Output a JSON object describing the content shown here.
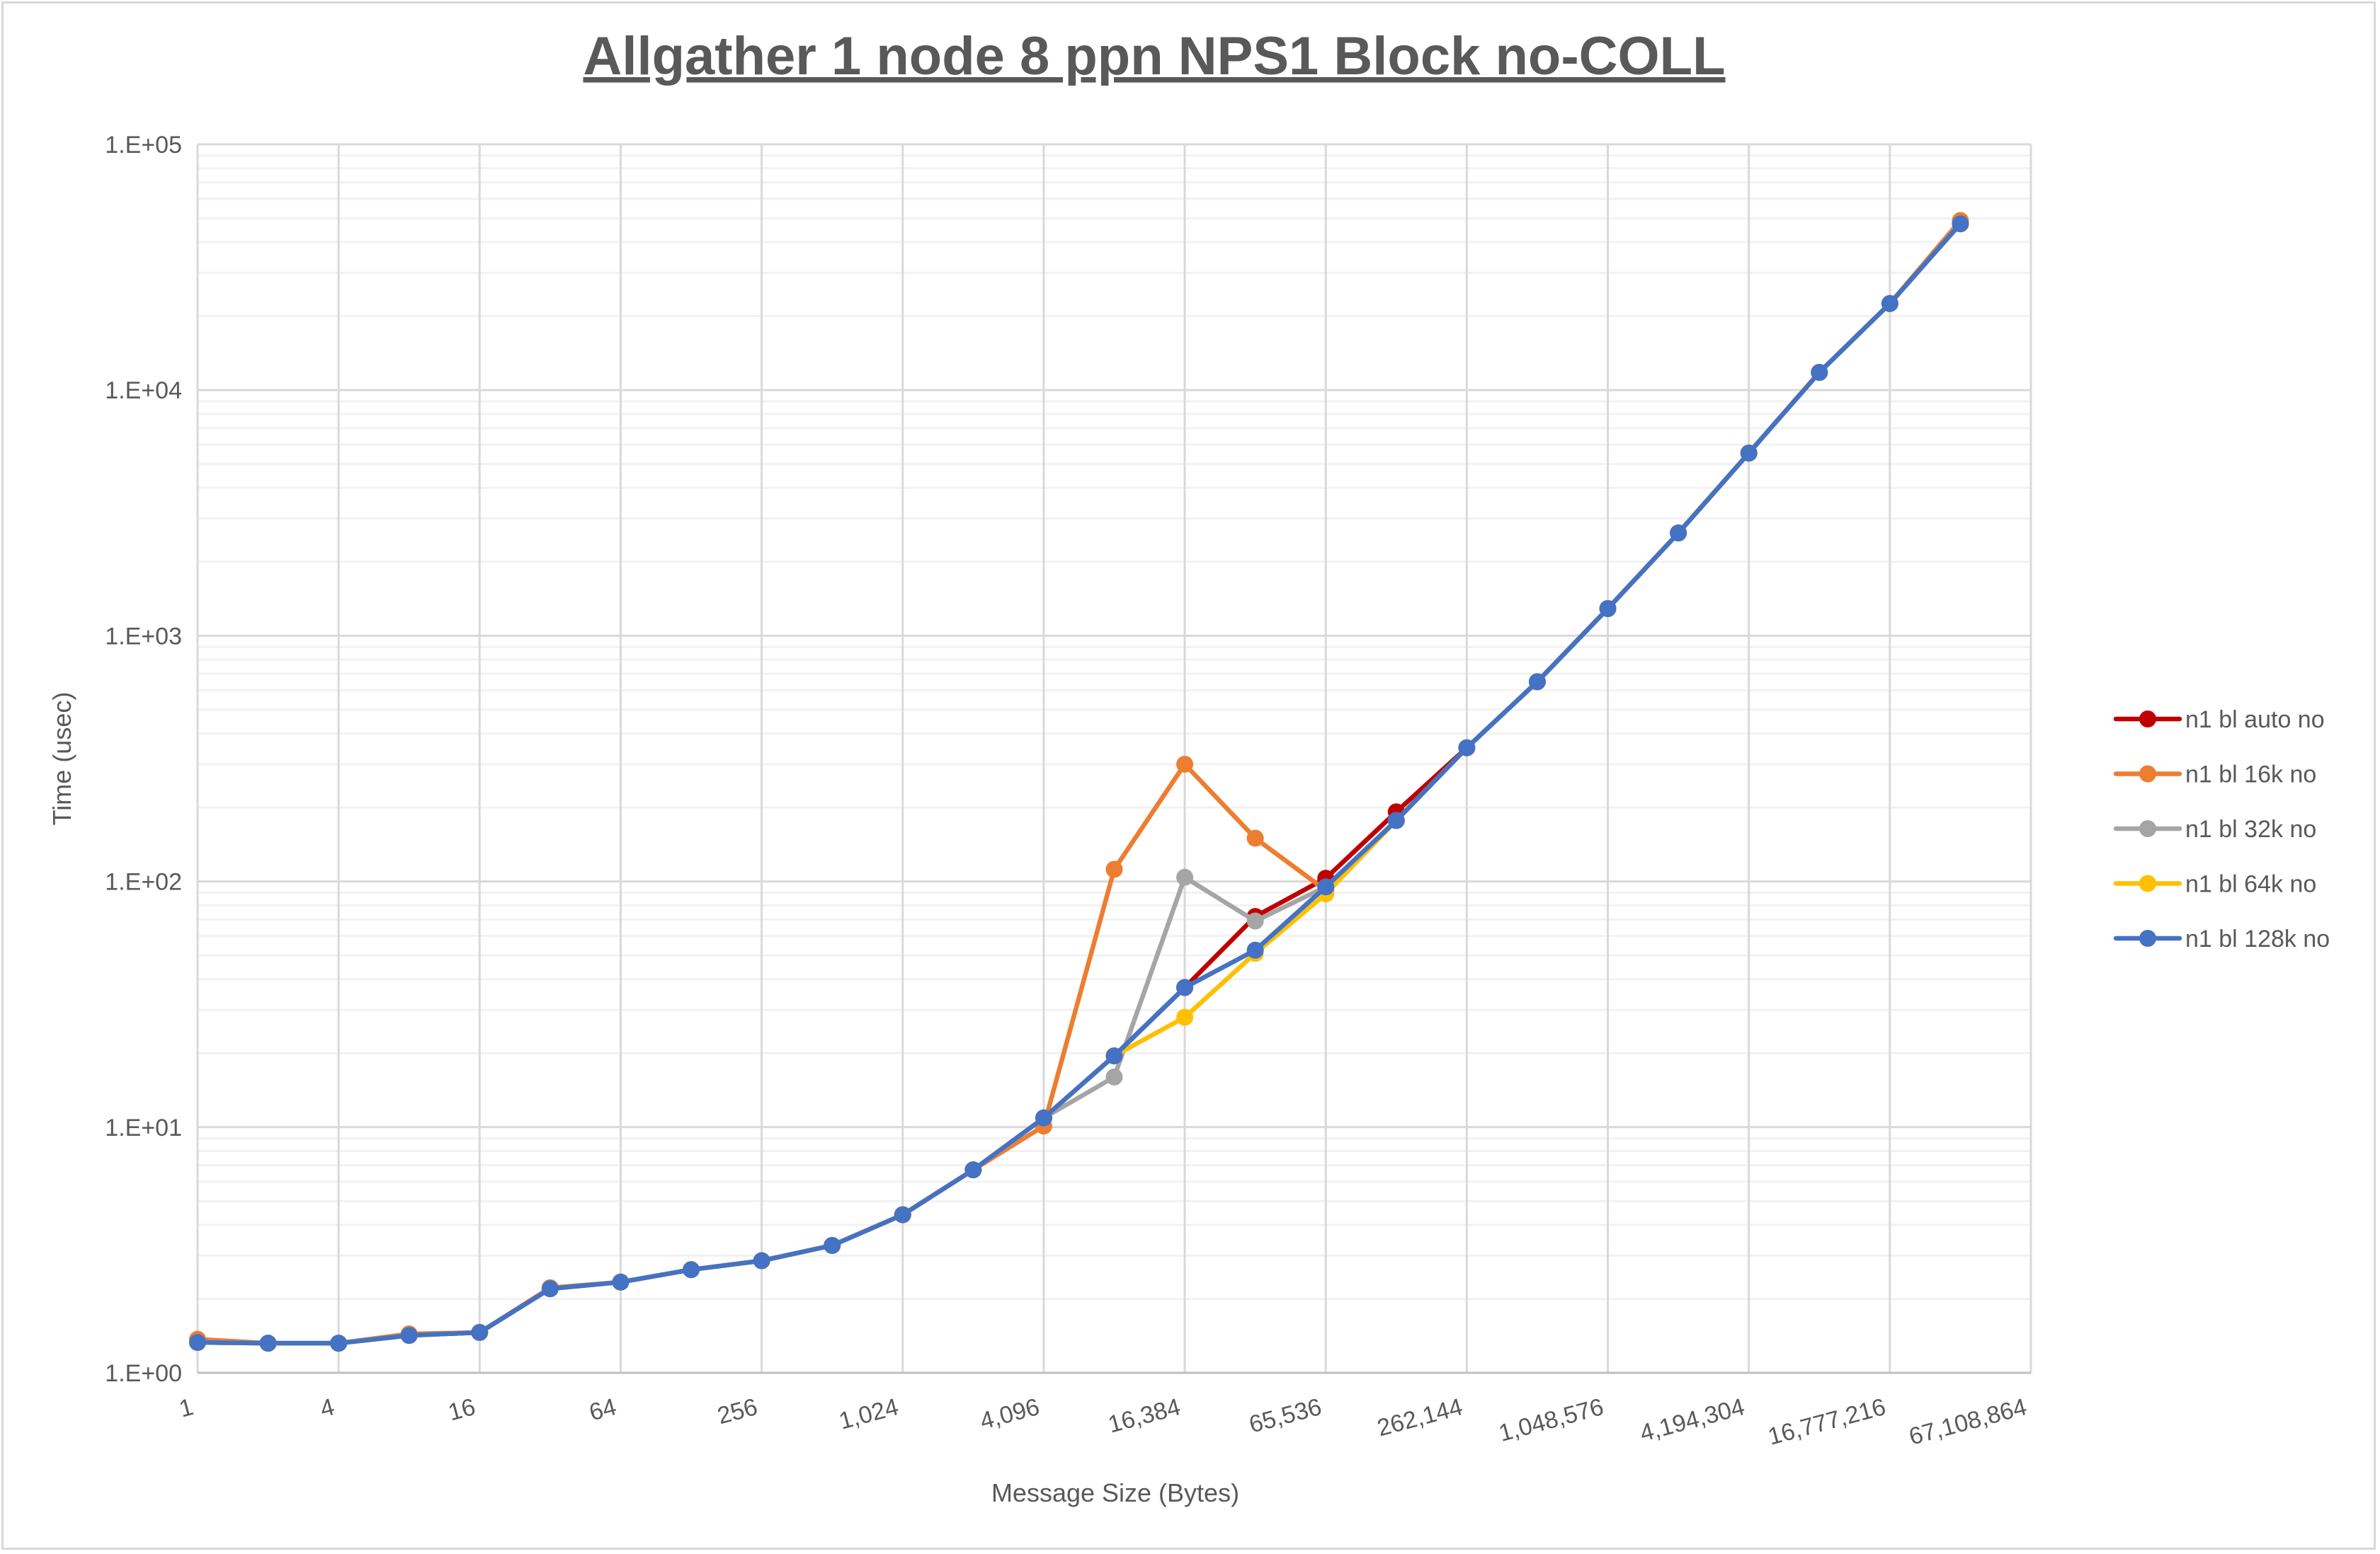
{
  "chart_data": {
    "type": "line",
    "title": "Allgather 1 node 8 ppn NPS1 Block no-COLL",
    "xlabel": "Message Size (Bytes)",
    "ylabel": "Time (usec)",
    "x_scale": "log2",
    "y_scale": "log10",
    "xlim": [
      1,
      67108864
    ],
    "ylim": [
      1,
      100000
    ],
    "grid": true,
    "legend_position": "right",
    "x_tick_labels": [
      "1",
      "4",
      "16",
      "64",
      "256",
      "1,024",
      "4,096",
      "16,384",
      "65,536",
      "262,144",
      "1,048,576",
      "4,194,304",
      "16,777,216",
      "67,108,864"
    ],
    "y_tick_labels": [
      "1.E+00",
      "1.E+01",
      "1.E+02",
      "1.E+03",
      "1.E+04",
      "1.E+05"
    ],
    "x": [
      1,
      2,
      4,
      8,
      16,
      32,
      64,
      128,
      256,
      512,
      1024,
      2048,
      4096,
      8192,
      16384,
      32768,
      65536,
      131072,
      262144,
      524288,
      1048576,
      2097152,
      4194304,
      8388608,
      16777216,
      33554432
    ],
    "series": [
      {
        "name": "n1 bl auto no",
        "color": "#C00000",
        "values": [
          1.33,
          1.32,
          1.32,
          1.42,
          1.46,
          2.2,
          2.34,
          2.63,
          2.86,
          3.3,
          4.4,
          6.7,
          10.9,
          19.5,
          37,
          72,
          103,
          192,
          350,
          650,
          1290,
          2620,
          5540,
          11800,
          22500,
          47500
        ]
      },
      {
        "name": "n1 bl 16k no",
        "color": "#ED7D31",
        "values": [
          1.37,
          1.32,
          1.32,
          1.44,
          1.46,
          2.22,
          2.34,
          2.63,
          2.86,
          3.3,
          4.4,
          6.7,
          10.1,
          112,
          300,
          150,
          92,
          177,
          350,
          650,
          1290,
          2620,
          5540,
          11800,
          22500,
          49000
        ]
      },
      {
        "name": "n1 bl 32k no",
        "color": "#A5A5A5",
        "values": [
          1.33,
          1.32,
          1.32,
          1.42,
          1.46,
          2.2,
          2.34,
          2.63,
          2.86,
          3.3,
          4.4,
          6.7,
          10.9,
          16,
          104,
          69,
          95,
          177,
          350,
          650,
          1290,
          2620,
          5540,
          11800,
          22500,
          47500
        ]
      },
      {
        "name": "n1 bl 64k no",
        "color": "#FFC000",
        "values": [
          1.33,
          1.32,
          1.32,
          1.42,
          1.46,
          2.2,
          2.34,
          2.63,
          2.86,
          3.3,
          4.4,
          6.7,
          10.9,
          19.5,
          28,
          51,
          89,
          177,
          350,
          650,
          1290,
          2620,
          5540,
          11800,
          22500,
          47500
        ]
      },
      {
        "name": "n1 bl 128k no",
        "color": "#4472C4",
        "values": [
          1.33,
          1.32,
          1.32,
          1.42,
          1.46,
          2.2,
          2.34,
          2.63,
          2.86,
          3.3,
          4.4,
          6.7,
          10.9,
          19.5,
          37,
          52.5,
          95,
          177,
          350,
          650,
          1290,
          2620,
          5540,
          11800,
          22500,
          47500
        ]
      }
    ]
  }
}
